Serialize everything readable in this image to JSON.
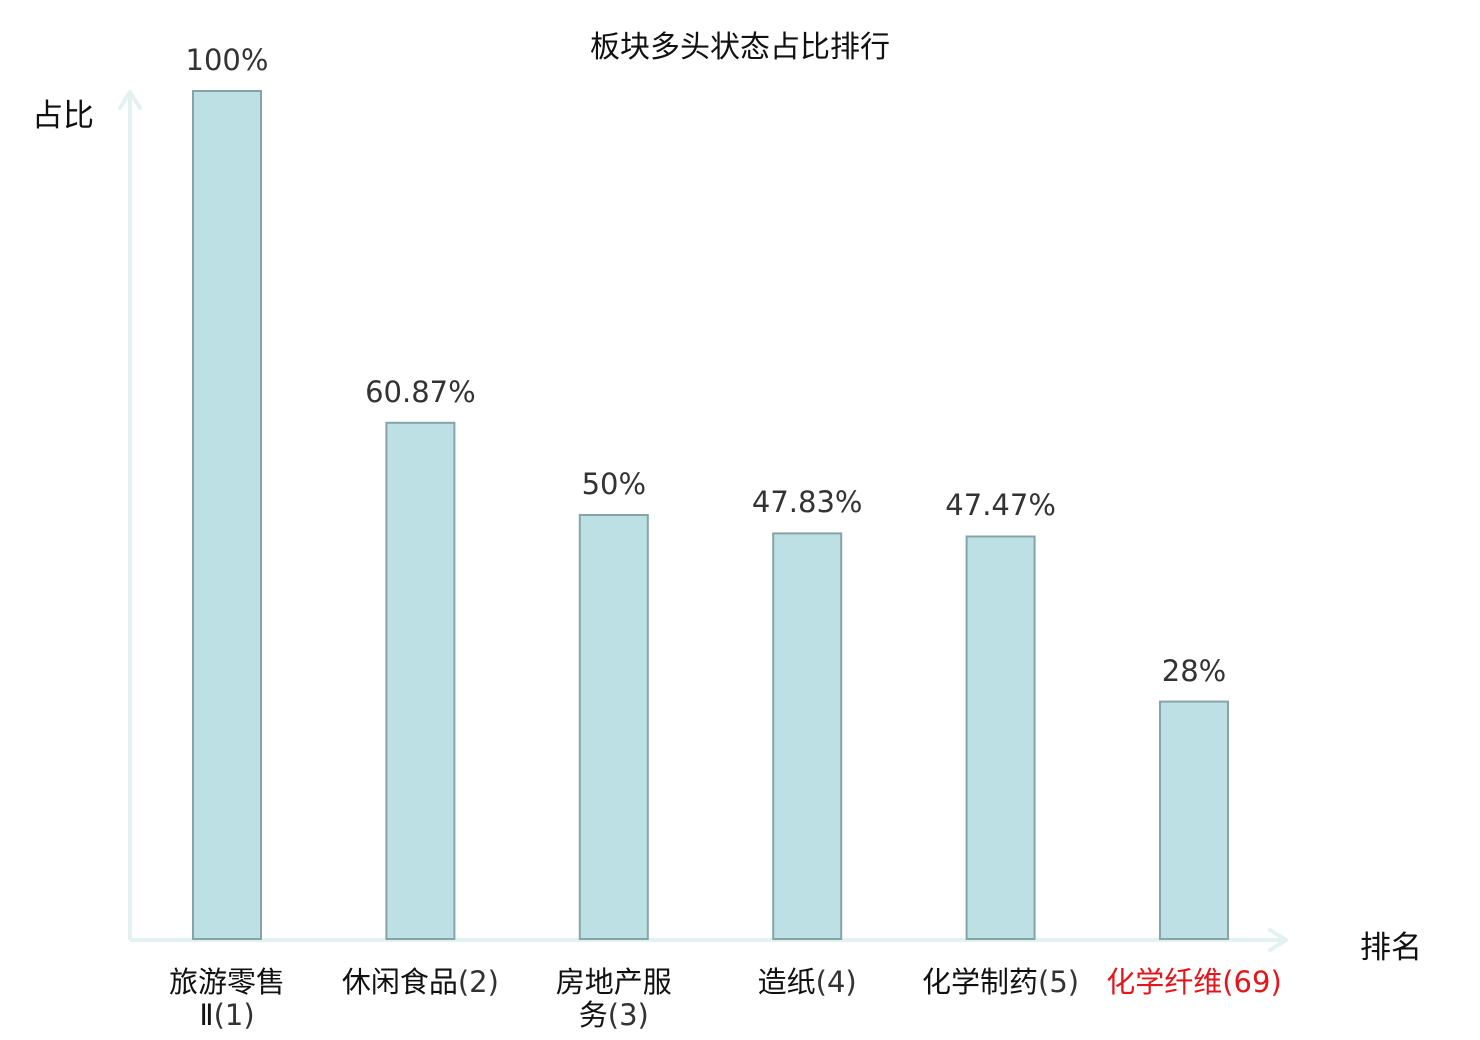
{
  "colors": {
    "bar_fill": "#bce0e3",
    "bar_stroke": "#86a4a8",
    "axis": "#e2f2f0",
    "highlight": "#e3171b"
  },
  "chart_data": {
    "type": "bar",
    "title": "板块多头状态占比排行",
    "ylabel": "占比",
    "xlabel": "排名",
    "ylim": [
      0,
      100
    ],
    "grid": false,
    "categories": [
      {
        "name": "旅游零售Ⅱ",
        "rank": "(1)",
        "highlight": false
      },
      {
        "name": "休闲食品",
        "rank": "(2)",
        "highlight": false
      },
      {
        "name": "房地产服务",
        "rank": "(3)",
        "highlight": false
      },
      {
        "name": "造纸",
        "rank": "(4)",
        "highlight": false
      },
      {
        "name": "化学制药",
        "rank": "(5)",
        "highlight": false
      },
      {
        "name": "化学纤维",
        "rank": "(69)",
        "highlight": true
      }
    ],
    "values": [
      100,
      60.87,
      50,
      47.83,
      47.47,
      28
    ],
    "value_labels": [
      "100%",
      "60.87%",
      "50%",
      "47.83%",
      "47.47%",
      "28%"
    ]
  }
}
